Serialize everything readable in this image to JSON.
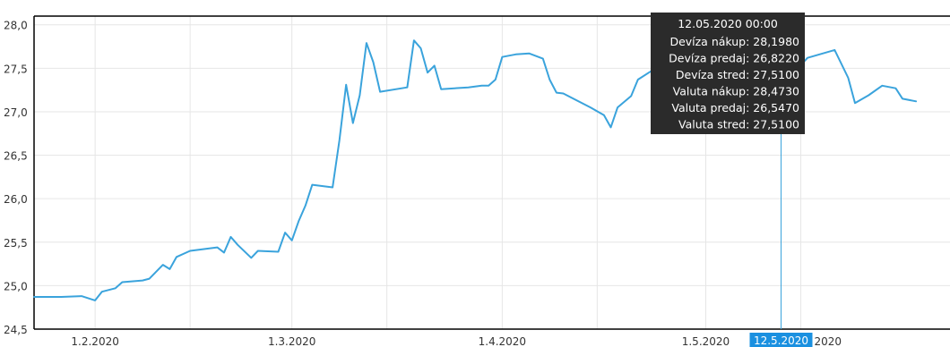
{
  "chart_data": {
    "type": "line",
    "title": "",
    "xlabel": "",
    "ylabel": "",
    "ylim": [
      24.5,
      28.1
    ],
    "xlim": [
      "2020-01-23",
      "2020-06-06"
    ],
    "grid": true,
    "y_ticks": [
      {
        "value": 24.5,
        "label": "24,5"
      },
      {
        "value": 25.0,
        "label": "25,0"
      },
      {
        "value": 25.5,
        "label": "25,5"
      },
      {
        "value": 26.0,
        "label": "26,0"
      },
      {
        "value": 26.5,
        "label": "26,5"
      },
      {
        "value": 27.0,
        "label": "27,0"
      },
      {
        "value": 27.5,
        "label": "27,5"
      },
      {
        "value": 28.0,
        "label": "28,0"
      }
    ],
    "x_ticks": [
      {
        "date": "2020-02-01",
        "label": "1.2.2020"
      },
      {
        "date": "2020-03-01",
        "label": "1.3.2020"
      },
      {
        "date": "2020-04-01",
        "label": "1.4.2020"
      },
      {
        "date": "2020-05-01",
        "label": "1.5.2020"
      }
    ],
    "series": [
      {
        "color": "#3aa3dc",
        "points": [
          [
            "2020-01-23",
            24.87
          ],
          [
            "2020-01-27",
            24.87
          ],
          [
            "2020-01-30",
            24.88
          ],
          [
            "2020-02-01",
            24.83
          ],
          [
            "2020-02-02",
            24.93
          ],
          [
            "2020-02-04",
            24.97
          ],
          [
            "2020-02-05",
            25.04
          ],
          [
            "2020-02-08",
            25.06
          ],
          [
            "2020-02-09",
            25.08
          ],
          [
            "2020-02-11",
            25.24
          ],
          [
            "2020-02-12",
            25.19
          ],
          [
            "2020-02-13",
            25.33
          ],
          [
            "2020-02-15",
            25.4
          ],
          [
            "2020-02-19",
            25.44
          ],
          [
            "2020-02-20",
            25.38
          ],
          [
            "2020-02-21",
            25.56
          ],
          [
            "2020-02-22",
            25.47
          ],
          [
            "2020-02-24",
            25.32
          ],
          [
            "2020-02-25",
            25.4
          ],
          [
            "2020-02-28",
            25.39
          ],
          [
            "2020-02-29",
            25.61
          ],
          [
            "2020-03-01",
            25.52
          ],
          [
            "2020-03-02",
            25.74
          ],
          [
            "2020-03-03",
            25.92
          ],
          [
            "2020-03-04",
            26.16
          ],
          [
            "2020-03-07",
            26.13
          ],
          [
            "2020-03-08",
            26.67
          ],
          [
            "2020-03-09",
            27.31
          ],
          [
            "2020-03-10",
            26.87
          ],
          [
            "2020-03-11",
            27.19
          ],
          [
            "2020-03-12",
            27.79
          ],
          [
            "2020-03-13",
            27.57
          ],
          [
            "2020-03-14",
            27.23
          ],
          [
            "2020-03-18",
            27.28
          ],
          [
            "2020-03-19",
            27.82
          ],
          [
            "2020-03-20",
            27.73
          ],
          [
            "2020-03-21",
            27.45
          ],
          [
            "2020-03-22",
            27.53
          ],
          [
            "2020-03-23",
            27.26
          ],
          [
            "2020-03-27",
            27.28
          ],
          [
            "2020-03-29",
            27.3
          ],
          [
            "2020-03-30",
            27.3
          ],
          [
            "2020-03-31",
            27.37
          ],
          [
            "2020-04-01",
            27.63
          ],
          [
            "2020-04-03",
            27.66
          ],
          [
            "2020-04-05",
            27.67
          ],
          [
            "2020-04-07",
            27.61
          ],
          [
            "2020-04-08",
            27.37
          ],
          [
            "2020-04-09",
            27.22
          ],
          [
            "2020-04-10",
            27.21
          ],
          [
            "2020-04-14",
            27.05
          ],
          [
            "2020-04-16",
            26.96
          ],
          [
            "2020-04-17",
            26.82
          ],
          [
            "2020-04-18",
            27.05
          ],
          [
            "2020-04-20",
            27.18
          ],
          [
            "2020-04-21",
            27.37
          ],
          [
            "2020-04-23",
            27.47
          ],
          [
            "2020-05-09",
            27.22
          ],
          [
            "2020-05-12",
            27.51
          ],
          [
            "2020-05-13",
            27.47
          ],
          [
            "2020-05-14",
            27.45
          ],
          [
            "2020-05-16",
            27.62
          ],
          [
            "2020-05-20",
            27.71
          ],
          [
            "2020-05-22",
            27.39
          ],
          [
            "2020-05-23",
            27.1
          ],
          [
            "2020-05-25",
            27.19
          ],
          [
            "2020-05-27",
            27.3
          ],
          [
            "2020-05-29",
            27.27
          ],
          [
            "2020-05-30",
            27.15
          ],
          [
            "2020-06-01",
            27.12
          ]
        ]
      }
    ]
  },
  "crosshair": {
    "date": "2020-05-12",
    "x_label": "12.5.2020",
    "visible_tail_label": "2020"
  },
  "tooltip": {
    "title": "12.05.2020 00:00",
    "rows": [
      {
        "label": "Devíza nákup",
        "value": "28,1980"
      },
      {
        "label": "Devíza predaj",
        "value": "26,8220"
      },
      {
        "label": "Devíza stred",
        "value": "27,5100"
      },
      {
        "label": "Valuta nákup",
        "value": "28,4730"
      },
      {
        "label": "Valuta predaj",
        "value": "26,5470"
      },
      {
        "label": "Valuta stred",
        "value": "27,5100"
      }
    ]
  },
  "colors": {
    "line": "#3aa3dc",
    "grid": "#e6e6e6",
    "axis": "#000000",
    "tooltip_bg": "#2b2b2b",
    "tooltip_text": "#ffffff",
    "crosshair": "#3aa3dc",
    "crosshair_label_bg": "#1a90e0"
  }
}
